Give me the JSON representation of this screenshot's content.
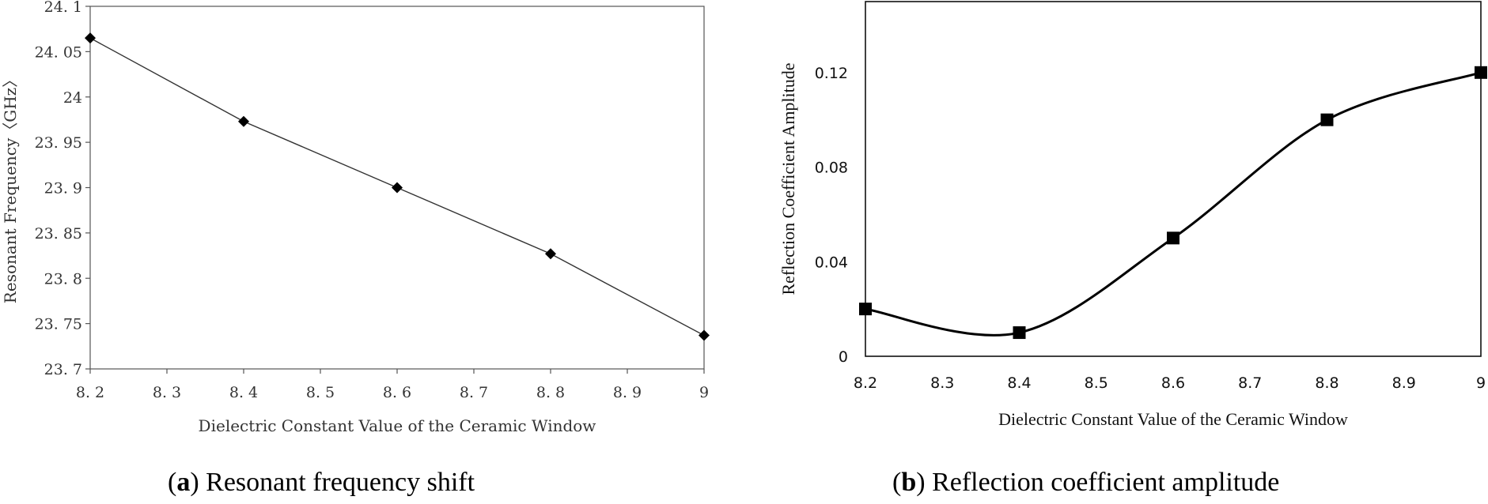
{
  "chart_data": [
    {
      "type": "line",
      "caption_letter": "a",
      "caption_text": "Resonant frequency shift",
      "xlabel": "Dielectric Constant Value of the Ceramic Window",
      "ylabel": "Resonant Frequency〈GHz〉",
      "xlim": [
        8.2,
        9.0
      ],
      "ylim": [
        23.7,
        24.1
      ],
      "xticks": [
        "8. 2",
        "8. 3",
        "8. 4",
        "8. 5",
        "8. 6",
        "8. 7",
        "8. 8",
        "8. 9",
        "9"
      ],
      "yticks": [
        "23. 7",
        "23. 75",
        "23. 8",
        "23. 85",
        "23. 9",
        "23. 95",
        "24",
        "24. 05",
        "24. 1"
      ],
      "marker": "diamond",
      "grid": false,
      "x": [
        8.2,
        8.4,
        8.6,
        8.8,
        9.0
      ],
      "y": [
        24.065,
        23.973,
        23.9,
        23.827,
        23.737
      ]
    },
    {
      "type": "line",
      "caption_letter": "b",
      "caption_text": "Reflection coefficient amplitude",
      "xlabel": "Dielectric Constant Value of the Ceramic Window",
      "ylabel": "Reflection Coefficient Amplitude",
      "xlim": [
        8.2,
        9.0
      ],
      "ylim": [
        0,
        0.15
      ],
      "xticks": [
        "8.2",
        "8.3",
        "8.4",
        "8.5",
        "8.6",
        "8.7",
        "8.8",
        "8.9",
        "9"
      ],
      "yticks": [
        "0",
        "0.04",
        "0.08",
        "0.12"
      ],
      "marker": "square",
      "grid": false,
      "smooth": true,
      "x": [
        8.2,
        8.4,
        8.6,
        8.8,
        9.0
      ],
      "y": [
        0.02,
        0.01,
        0.05,
        0.1,
        0.12
      ]
    }
  ]
}
